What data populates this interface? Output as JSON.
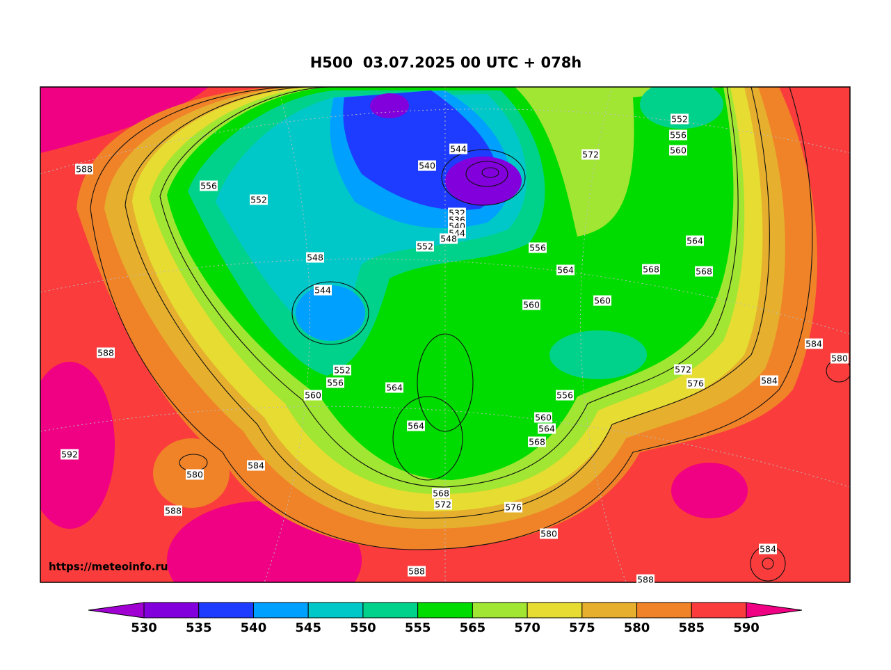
{
  "header": {
    "title": "H500  03.07.2025 00 UTC + 078h"
  },
  "map": {
    "credit": "https://meteoinfo.ru",
    "contour_labels": [
      588,
      556,
      552,
      548,
      544,
      540,
      544,
      532,
      536,
      540,
      544,
      548,
      552,
      556,
      564,
      560,
      560,
      572,
      552,
      556,
      560,
      564,
      568,
      568,
      584,
      580,
      584,
      572,
      576,
      588,
      552,
      556,
      560,
      564,
      556,
      564,
      560,
      564,
      568,
      592,
      580,
      584,
      588,
      568,
      572,
      576,
      580,
      584,
      588,
      588
    ]
  },
  "colorbar": {
    "ticks": [
      530,
      535,
      540,
      545,
      550,
      555,
      565,
      570,
      575,
      580,
      585,
      590
    ],
    "colors": [
      "#a000d2",
      "#8200dc",
      "#1e3cff",
      "#00a0ff",
      "#00c8c8",
      "#00d28c",
      "#00dc00",
      "#a0e632",
      "#e6dc32",
      "#e6af2d",
      "#f08228",
      "#fa3c3c",
      "#f00082"
    ]
  }
}
